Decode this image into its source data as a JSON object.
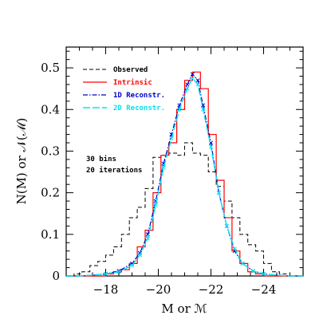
{
  "chart_data": {
    "type": "line",
    "xlabel": "M or ℳ",
    "ylabel": "N(M) or 𝒩(ℳ)",
    "xlim": [
      -16.5,
      -25.5
    ],
    "ylim": [
      0,
      0.55
    ],
    "x_ticks": [
      -18,
      -20,
      -22,
      -24
    ],
    "y_ticks": [
      0,
      0.1,
      0.2,
      0.3,
      0.4,
      0.5
    ],
    "x_tick_labels": [
      "−18",
      "−20",
      "−22",
      "−24"
    ],
    "y_tick_labels": [
      "0",
      "0.1",
      "0.2",
      "0.3",
      "0.4",
      "0.5"
    ],
    "grid": false,
    "legend_position": "top-left",
    "annotations": [
      "30 bins",
      "20 iterations"
    ],
    "series": [
      {
        "name": "Observed",
        "style": "step",
        "color": "#000000",
        "dash": "dashed",
        "bin_width": 0.3,
        "x": [
          -16.5,
          -16.8,
          -17.1,
          -17.4,
          -17.7,
          -18.0,
          -18.3,
          -18.6,
          -18.9,
          -19.2,
          -19.5,
          -19.8,
          -20.1,
          -20.4,
          -20.7,
          -21.0,
          -21.3,
          -21.6,
          -21.9,
          -22.2,
          -22.5,
          -22.8,
          -23.1,
          -23.4,
          -23.7,
          -24.0,
          -24.3,
          -24.6,
          -24.9,
          -25.2
        ],
        "values": [
          0.0,
          0.005,
          0.01,
          0.025,
          0.035,
          0.05,
          0.07,
          0.1,
          0.14,
          0.165,
          0.21,
          0.285,
          0.29,
          0.295,
          0.29,
          0.32,
          0.295,
          0.29,
          0.25,
          0.215,
          0.18,
          0.14,
          0.1,
          0.075,
          0.06,
          0.03,
          0.01,
          0.005,
          0.0,
          0.0
        ]
      },
      {
        "name": "Intrinsic",
        "style": "step",
        "color": "#ff0000",
        "dash": "solid",
        "bin_width": 0.3,
        "x": [
          -16.5,
          -16.8,
          -17.1,
          -17.4,
          -17.7,
          -18.0,
          -18.3,
          -18.6,
          -18.9,
          -19.2,
          -19.5,
          -19.8,
          -20.1,
          -20.4,
          -20.7,
          -21.0,
          -21.3,
          -21.6,
          -21.9,
          -22.2,
          -22.5,
          -22.8,
          -23.1,
          -23.4,
          -23.7,
          -24.0,
          -24.3,
          -24.6,
          -24.9,
          -25.2
        ],
        "values": [
          0.0,
          0.0,
          0.0,
          0.0,
          0.0,
          0.005,
          0.01,
          0.015,
          0.03,
          0.07,
          0.11,
          0.2,
          0.29,
          0.32,
          0.4,
          0.47,
          0.49,
          0.45,
          0.34,
          0.23,
          0.14,
          0.06,
          0.03,
          0.01,
          0.005,
          0.0,
          0.0,
          0.0,
          0.0,
          0.0
        ]
      },
      {
        "name": "1D Reconstr.",
        "style": "line",
        "color": "#0000cc",
        "dash": "dashdot",
        "x": [
          -16.5,
          -17.0,
          -17.5,
          -18.0,
          -18.5,
          -19.0,
          -19.3,
          -19.6,
          -19.9,
          -20.2,
          -20.5,
          -20.8,
          -21.1,
          -21.3,
          -21.5,
          -21.7,
          -22.0,
          -22.3,
          -22.6,
          -22.9,
          -23.2,
          -23.6,
          -24.0,
          -24.5,
          -25.0,
          -25.5
        ],
        "values": [
          0.0,
          0.0,
          0.002,
          0.005,
          0.012,
          0.03,
          0.055,
          0.1,
          0.18,
          0.27,
          0.34,
          0.41,
          0.46,
          0.485,
          0.47,
          0.41,
          0.32,
          0.2,
          0.12,
          0.06,
          0.03,
          0.012,
          0.005,
          0.002,
          0.0,
          0.0
        ]
      },
      {
        "name": "2D Reconstr.",
        "style": "line",
        "color": "#00e5ee",
        "dash": "longdash",
        "x": [
          -16.5,
          -17.0,
          -17.5,
          -18.0,
          -18.5,
          -19.0,
          -19.3,
          -19.6,
          -19.9,
          -20.2,
          -20.5,
          -20.8,
          -21.1,
          -21.3,
          -21.5,
          -21.7,
          -22.0,
          -22.3,
          -22.6,
          -22.9,
          -23.2,
          -23.6,
          -24.0,
          -24.5,
          -25.0,
          -25.5
        ],
        "values": [
          0.0,
          0.0,
          0.002,
          0.005,
          0.01,
          0.025,
          0.05,
          0.09,
          0.17,
          0.26,
          0.33,
          0.4,
          0.45,
          0.475,
          0.46,
          0.4,
          0.31,
          0.2,
          0.12,
          0.065,
          0.03,
          0.012,
          0.005,
          0.002,
          0.0,
          0.0
        ]
      }
    ]
  }
}
